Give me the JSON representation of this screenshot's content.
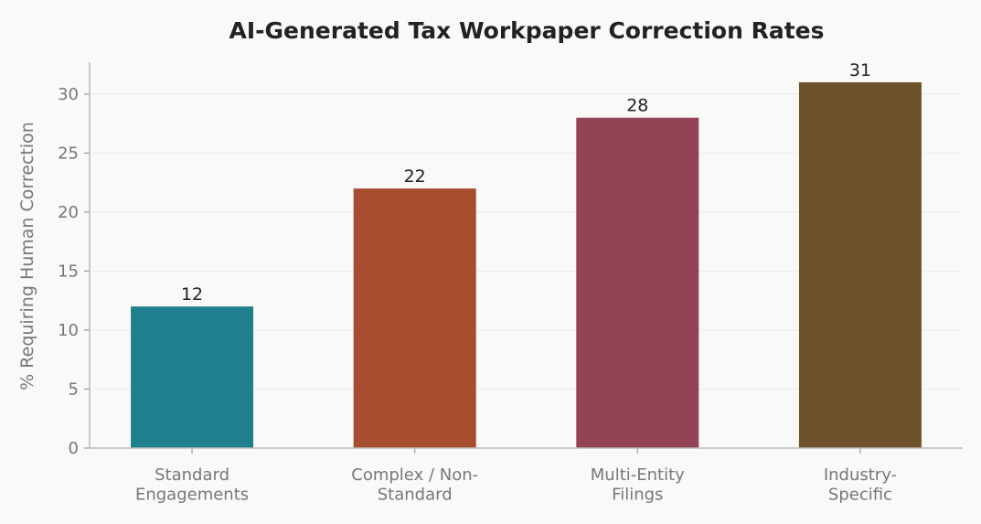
{
  "chart_data": {
    "type": "bar",
    "title": "AI-Generated Tax Workpaper Correction Rates",
    "y_label": "% Requiring Human Correction",
    "categories": [
      "Standard\nEngagements",
      "Complex / Non-\nStandard",
      "Multi-Entity\nFilings",
      "Industry-\nSpecific"
    ],
    "values": [
      12,
      22,
      28,
      31
    ],
    "colors": [
      "#1f7f8c",
      "#a64d30",
      "#934355",
      "#6e522b"
    ],
    "ylim": [
      0,
      32.55
    ],
    "yticks": [
      0,
      5,
      10,
      15,
      20,
      25,
      30
    ],
    "grid": true
  }
}
